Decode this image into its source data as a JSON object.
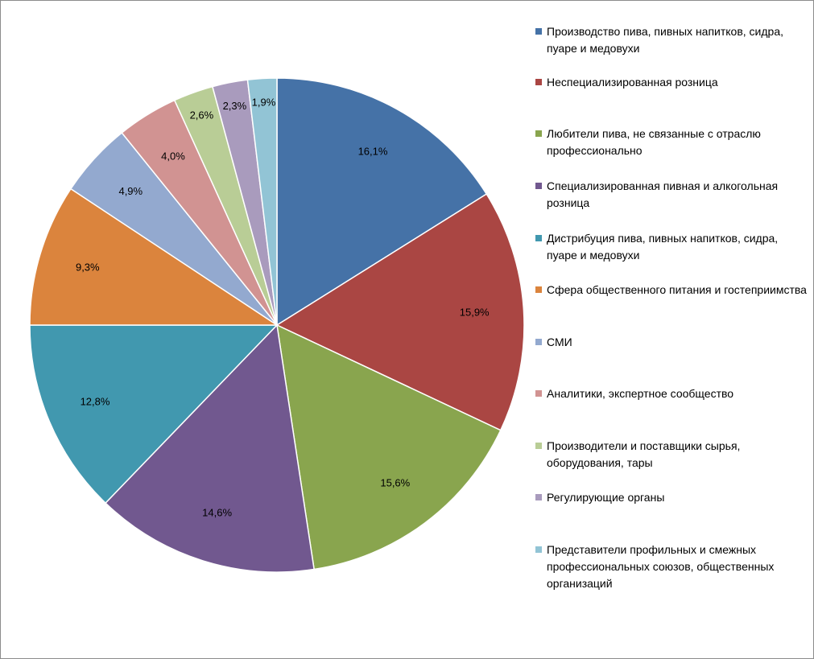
{
  "chart_data": {
    "type": "pie",
    "title": "",
    "start_angle_deg": 0,
    "direction": "clockwise",
    "legend_position": "right",
    "slices": [
      {
        "label": "Производство пива, пивных напитков, сидра, пуаре и медовухи",
        "value": 16.1,
        "display": "16,1%",
        "color": "#4572A7"
      },
      {
        "label": "Неспециализированная  розница",
        "value": 15.9,
        "display": "15,9%",
        "color": "#AA4643"
      },
      {
        "label": "Любители пива, не связанные  с отраслю профессионально",
        "value": 15.6,
        "display": "15,6%",
        "color": "#89A54E"
      },
      {
        "label": "Специализированная пивная и алкогольная розница",
        "value": 14.6,
        "display": "14,6%",
        "color": "#71588F"
      },
      {
        "label": "Дистрибуция пива, пивных напитков, сидра, пуаре и медовухи",
        "value": 12.8,
        "display": "12,8%",
        "color": "#4198AF"
      },
      {
        "label": "Сфера общественного питания и гостеприимства",
        "value": 9.3,
        "display": "9,3%",
        "color": "#DB843D"
      },
      {
        "label": "СМИ",
        "value": 4.9,
        "display": "4,9%",
        "color": "#93A9CF"
      },
      {
        "label": "Аналитики, экспертное сообщество",
        "value": 4.0,
        "display": "4,0%",
        "color": "#D19392"
      },
      {
        "label": "Производители и поставщики сырья, оборудования, тары",
        "value": 2.6,
        "display": "2,6%",
        "color": "#B9CD96"
      },
      {
        "label": "Регулирующие органы",
        "value": 2.3,
        "display": "2,3%",
        "color": "#A99BBD"
      },
      {
        "label": "Представители профильных и смежных профессиональных союзов, общественных организаций",
        "value": 1.9,
        "display": "1,9%",
        "color": "#92C4D5"
      }
    ]
  }
}
